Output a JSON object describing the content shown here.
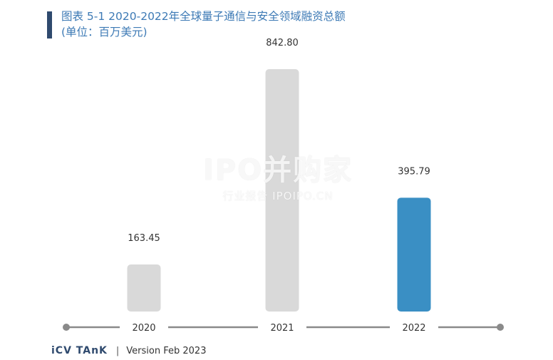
{
  "header": {
    "title": "图表 5-1 2020-2022年全球量子通信与安全领域融资总额",
    "subtitle": "(单位：百万美元)"
  },
  "watermark": {
    "main": "IPO并购家",
    "sub": "行业报告 IPOIPO.CN"
  },
  "footer": {
    "brand": "iCV TAnK",
    "separator": "|",
    "version": "Version Feb 2023"
  },
  "colors": {
    "bar_grey": "#d9d9d9",
    "bar_highlight": "#3a8fc4",
    "axis": "#8a8a8a",
    "title": "#3d7ab5"
  },
  "chart_data": {
    "type": "bar",
    "title": "图表 5-1 2020-2022年全球量子通信与安全领域融资总额",
    "subtitle": "(单位：百万美元)",
    "categories": [
      "2020",
      "2021",
      "2022"
    ],
    "values": [
      163.45,
      842.8,
      395.79
    ],
    "value_labels": [
      "163.45",
      "842.80",
      "395.79"
    ],
    "highlight_index": 2,
    "xlabel": "",
    "ylabel": "",
    "ylim": [
      0,
      842.8
    ],
    "grid": false,
    "legend": "none"
  }
}
